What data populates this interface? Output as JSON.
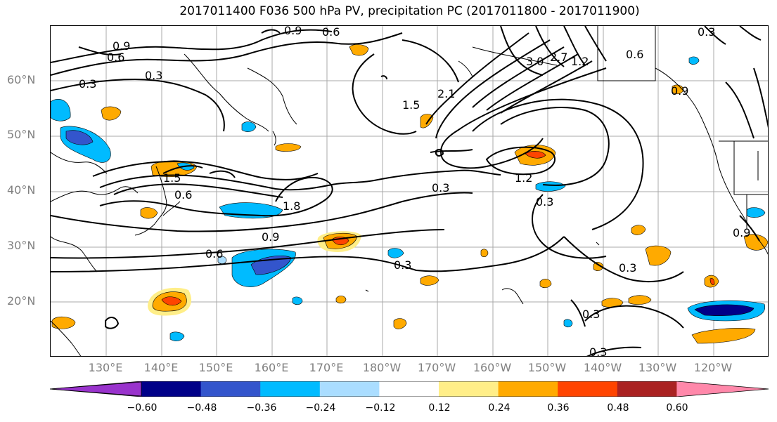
{
  "title": "2017011400 F036 500 hPa PV, precipitation PC (2017011800 - 2017011900)",
  "lat_labels": [
    "60°N",
    "50°N",
    "40°N",
    "30°N",
    "20°N"
  ],
  "lon_labels": [
    "130°E",
    "140°E",
    "150°E",
    "160°E",
    "170°E",
    "180°W",
    "170°W",
    "160°W",
    "150°W",
    "140°W",
    "130°W",
    "120°W"
  ],
  "colorbar": {
    "tick_labels": [
      "−0.60",
      "−0.48",
      "−0.36",
      "−0.24",
      "−0.12",
      "0.12",
      "0.24",
      "0.36",
      "0.48",
      "0.60"
    ],
    "colors": [
      "#9933cc",
      "#000088",
      "#3355cc",
      "#00bbff",
      "#aaddff",
      "#ffffff",
      "#ffee88",
      "#ffaa00",
      "#ff4400",
      "#aa2222",
      "#ff88aa"
    ]
  },
  "contour_labels": [
    "0.9",
    "0.6",
    "0.3",
    "0.9",
    "0.6",
    "0.3",
    "3.0",
    "2.7",
    "2.1",
    "1.5",
    "1.2",
    "1.2",
    "1.8",
    "1.5",
    "0.9",
    "0.6",
    "0.3",
    "0.3",
    "0.3",
    "0.3",
    "0.3",
    "0.6",
    "0.9",
    "0.3",
    "0.3",
    "0.6",
    "0.9"
  ],
  "fill_colors": {
    "light_yellow": "#ffee88",
    "orange": "#ffaa00",
    "red": "#ff4400",
    "cyan": "#00bbff",
    "blue": "#3355cc",
    "navy": "#000088",
    "light_blue": "#aaddff"
  }
}
